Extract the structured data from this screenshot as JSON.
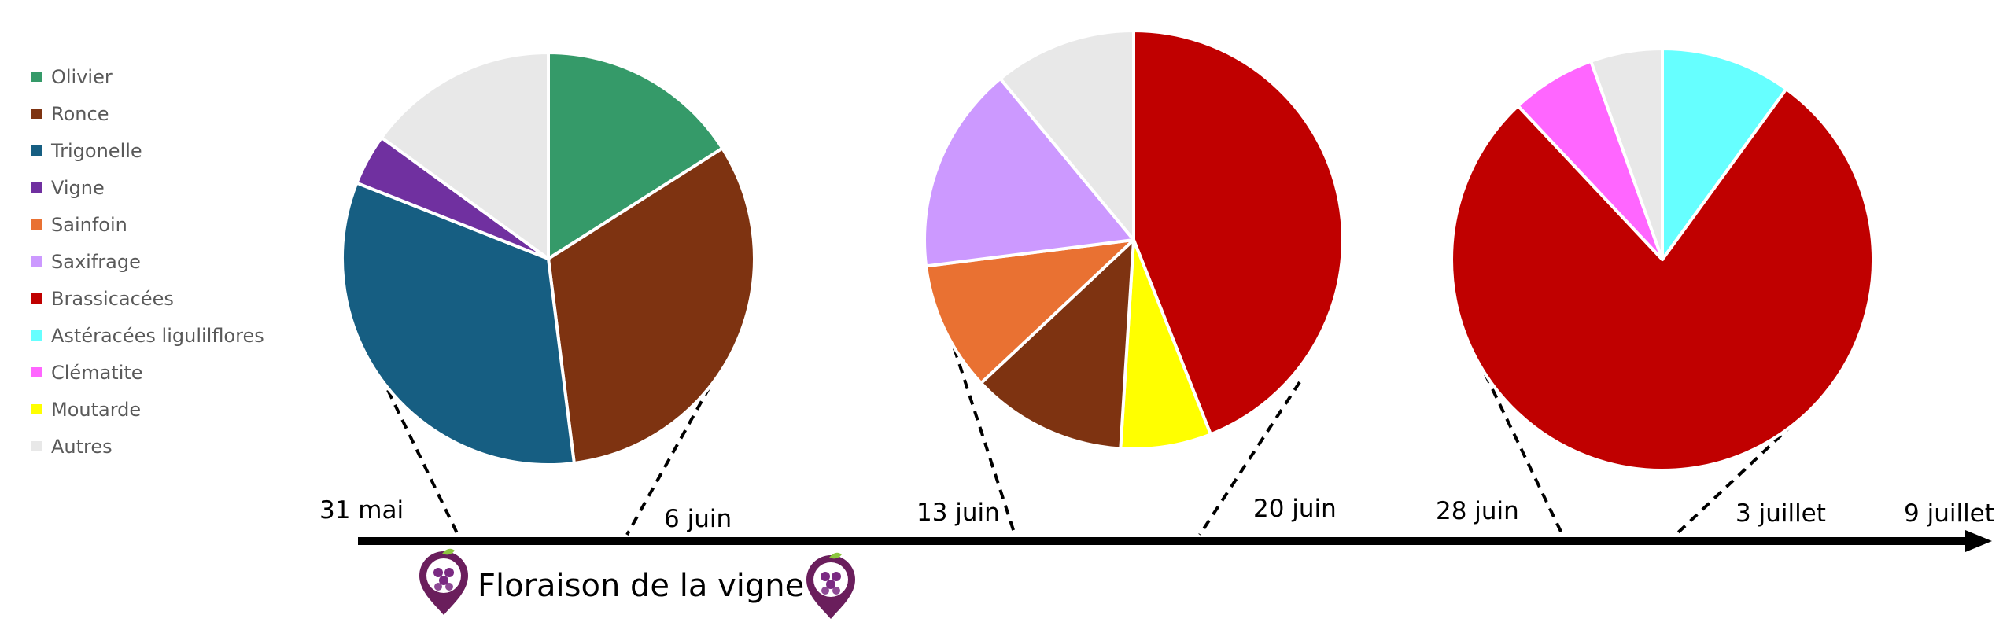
{
  "chart_data": {
    "type": "pie",
    "legend": {
      "placement": "left",
      "entries": [
        {
          "key": "olivier",
          "label": "Olivier",
          "color": "#359a69"
        },
        {
          "key": "ronce",
          "label": "Ronce",
          "color": "#7e3311"
        },
        {
          "key": "trigonelle",
          "label": "Trigonelle",
          "color": "#165e82"
        },
        {
          "key": "vigne",
          "label": "Vigne",
          "color": "#7030a0"
        },
        {
          "key": "sainfoin",
          "label": "Sainfoin",
          "color": "#e97132"
        },
        {
          "key": "saxifrage",
          "label": "Saxifrage",
          "color": "#cc99ff"
        },
        {
          "key": "brassicacees",
          "label": "Brassicacées",
          "color": "#c00000"
        },
        {
          "key": "asteracees",
          "label": "Astéracées ligulilflores",
          "color": "#66ffff"
        },
        {
          "key": "clematite",
          "label": "Clématite",
          "color": "#ff66ff"
        },
        {
          "key": "moutarde",
          "label": "Moutarde",
          "color": "#ffff00"
        },
        {
          "key": "autres",
          "label": "Autres",
          "color": "#e8e8e8"
        }
      ]
    },
    "pies": [
      {
        "period": [
          "31 mai",
          "6 juin"
        ],
        "slices": [
          {
            "key": "olivier",
            "value": 16
          },
          {
            "key": "ronce",
            "value": 32
          },
          {
            "key": "trigonelle",
            "value": 33
          },
          {
            "key": "vigne",
            "value": 4
          },
          {
            "key": "autres",
            "value": 15
          }
        ]
      },
      {
        "period": [
          "13 juin",
          "20 juin"
        ],
        "slices": [
          {
            "key": "brassicacees",
            "value": 44
          },
          {
            "key": "moutarde",
            "value": 7
          },
          {
            "key": "ronce",
            "value": 12
          },
          {
            "key": "sainfoin",
            "value": 10
          },
          {
            "key": "saxifrage",
            "value": 16
          },
          {
            "key": "autres",
            "value": 11
          }
        ]
      },
      {
        "period": [
          "28 juin",
          "3 juillet"
        ],
        "slices": [
          {
            "key": "asteracees",
            "value": 10
          },
          {
            "key": "brassicacees",
            "value": 78
          },
          {
            "key": "clematite",
            "value": 6.5
          },
          {
            "key": "autres",
            "value": 5.5
          }
        ]
      }
    ],
    "timeline": {
      "dates": [
        "31 mai",
        "6 juin",
        "13 juin",
        "20 juin",
        "28 juin",
        "3 juillet",
        "9 juillet"
      ],
      "event": {
        "label": "Floraison de la vigne",
        "from": "31 mai",
        "to": "13 juin",
        "icon": "grape-pin-icon"
      }
    }
  }
}
